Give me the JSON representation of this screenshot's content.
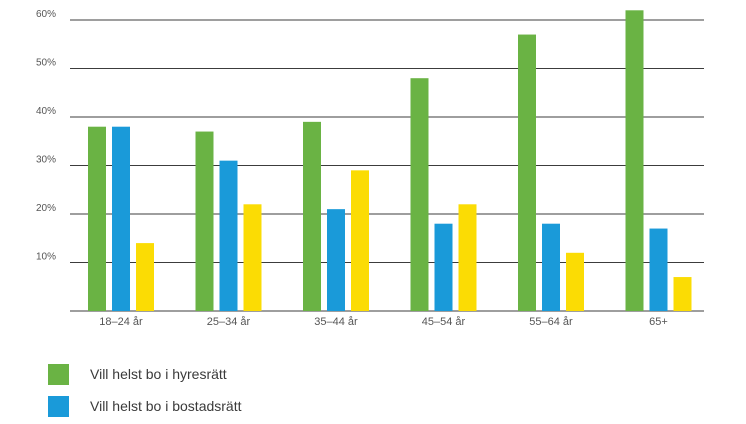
{
  "chart_data": {
    "type": "bar",
    "categories": [
      "18–24 år",
      "25–34 år",
      "35–44 år",
      "45–54 år",
      "55–64 år",
      "65+"
    ],
    "series": [
      {
        "name": "Vill helst bo i hyresrätt",
        "color": "#6ab344",
        "values": [
          38,
          37,
          39,
          48,
          57,
          62
        ]
      },
      {
        "name": "Vill helst bo i bostadsrätt",
        "color": "#1a9ad9",
        "values": [
          38,
          31,
          21,
          18,
          18,
          17
        ]
      },
      {
        "name": "",
        "color": "#fbdc04",
        "values": [
          14,
          22,
          29,
          22,
          12,
          7
        ]
      }
    ],
    "yticks": [
      "10%",
      "20%",
      "30%",
      "40%",
      "50%",
      "60%"
    ],
    "ylim": [
      0,
      60
    ],
    "grid": true,
    "legend": "bottom-left"
  }
}
